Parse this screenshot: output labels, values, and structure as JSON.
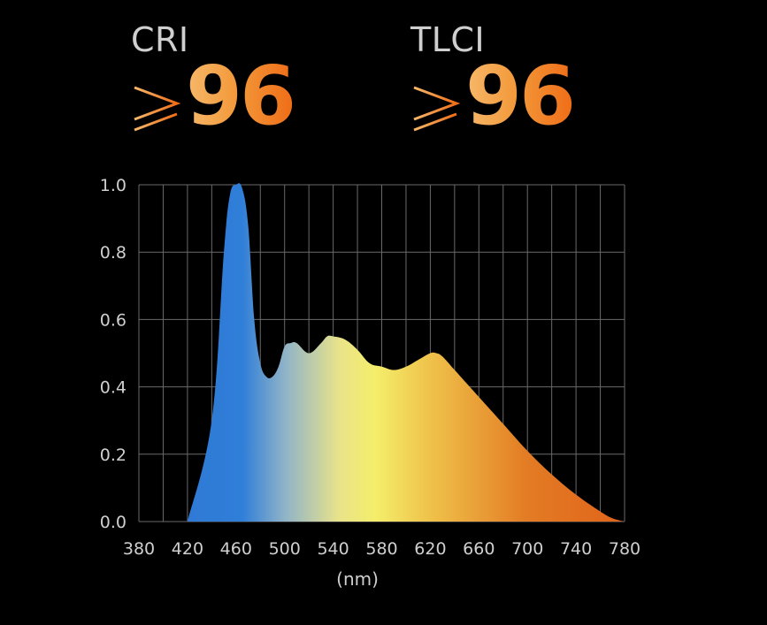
{
  "metrics": [
    {
      "label": "CRI",
      "symbol": "≥",
      "value": "96"
    },
    {
      "label": "TLCI",
      "symbol": "≥",
      "value": "96"
    }
  ],
  "colors": {
    "background": "#000000",
    "grid": "#6a6a6a",
    "text": "#cfcfcf",
    "metric_gradient": [
      "#f6b86a",
      "#ef6d17"
    ],
    "spectrum_gradient": [
      {
        "nm": 420,
        "color": "#2f7ad6"
      },
      {
        "nm": 465,
        "color": "#2f7ed8"
      },
      {
        "nm": 500,
        "color": "#8fb3c8"
      },
      {
        "nm": 545,
        "color": "#e9e38a"
      },
      {
        "nm": 575,
        "color": "#f4ee6a"
      },
      {
        "nm": 620,
        "color": "#efc24a"
      },
      {
        "nm": 700,
        "color": "#e37b24"
      },
      {
        "nm": 780,
        "color": "#e0641a"
      }
    ]
  },
  "chart_data": {
    "type": "area",
    "x": [
      420,
      440,
      450,
      455,
      460,
      465,
      470,
      475,
      480,
      485,
      490,
      495,
      500,
      505,
      510,
      520,
      530,
      535,
      540,
      550,
      560,
      570,
      580,
      590,
      600,
      610,
      620,
      625,
      630,
      640,
      650,
      660,
      680,
      700,
      720,
      740,
      760,
      770,
      780
    ],
    "y": [
      0.0,
      0.3,
      0.8,
      0.97,
      1.0,
      0.99,
      0.88,
      0.6,
      0.47,
      0.43,
      0.43,
      0.46,
      0.52,
      0.53,
      0.53,
      0.5,
      0.53,
      0.55,
      0.55,
      0.54,
      0.51,
      0.47,
      0.46,
      0.45,
      0.46,
      0.48,
      0.5,
      0.5,
      0.49,
      0.45,
      0.41,
      0.37,
      0.29,
      0.21,
      0.14,
      0.08,
      0.03,
      0.01,
      0.0
    ],
    "xlabel": "(nm)",
    "ylabel": "",
    "x_ticks": [
      380,
      420,
      460,
      500,
      540,
      580,
      620,
      660,
      700,
      740,
      780
    ],
    "y_ticks": [
      "0.0",
      "0.2",
      "0.4",
      "0.6",
      "0.8",
      "1.0"
    ],
    "xlim": [
      380,
      780
    ],
    "ylim": [
      0,
      1.0
    ],
    "grid": true,
    "x_grid_step": 20,
    "y_grid_step": 0.2
  }
}
